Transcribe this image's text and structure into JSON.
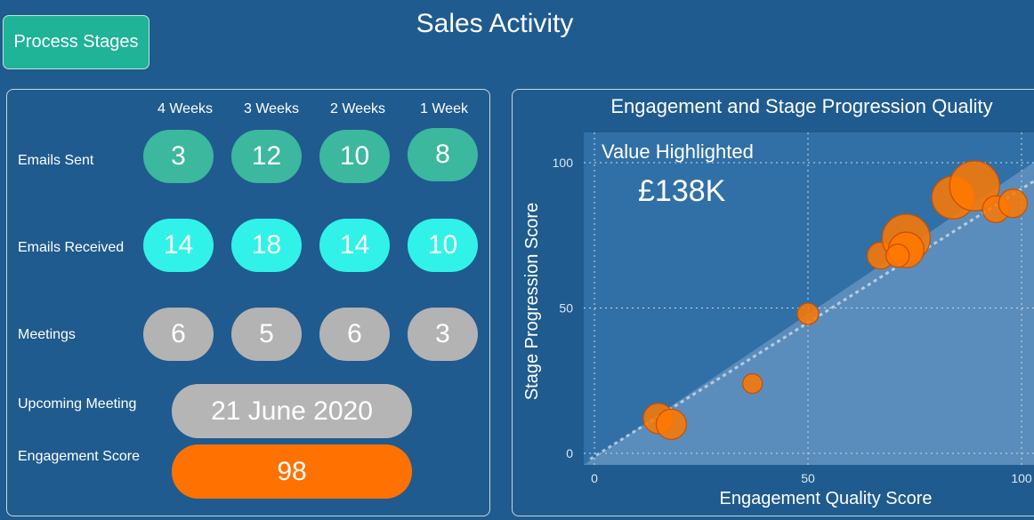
{
  "header": {
    "process_button": "Process Stages",
    "title": "Sales Activity"
  },
  "activity": {
    "columns": [
      "4 Weeks",
      "3 Weeks",
      "2 Weeks",
      "1 Week"
    ],
    "rows": [
      {
        "label": "Emails Sent",
        "values": [
          "3",
          "12",
          "10",
          "8"
        ],
        "color": "#3bb89e"
      },
      {
        "label": "Emails Received",
        "values": [
          "14",
          "18",
          "14",
          "10"
        ],
        "color": "#31f2e8"
      },
      {
        "label": "Meetings",
        "values": [
          "6",
          "5",
          "6",
          "3"
        ],
        "color": "#b3b3b3"
      }
    ],
    "upcoming_label": "Upcoming Meeting",
    "upcoming_value": "21 June 2020",
    "engagement_label": "Engagement Score",
    "engagement_value": "98",
    "engagement_color": "#ff7100"
  },
  "chart_data": {
    "type": "scatter",
    "title": "Engagement and Stage Progression Quality",
    "xlabel": "Engagement Quality Score",
    "ylabel": "Stage Progression Score",
    "xlim": [
      -1,
      101
    ],
    "ylim": [
      -4,
      110
    ],
    "xticks": [
      "0",
      "50",
      "100"
    ],
    "yticks": [
      "0",
      "50",
      "100"
    ],
    "grid": true,
    "highlight_label": "Value Highlighted",
    "highlight_value": "£138K",
    "marker_color": "#ff7800",
    "points": [
      {
        "x": 15,
        "y": 12,
        "size": 17
      },
      {
        "x": 18,
        "y": 10,
        "size": 17
      },
      {
        "x": 37,
        "y": 24,
        "size": 11
      },
      {
        "x": 50,
        "y": 48,
        "size": 12
      },
      {
        "x": 67,
        "y": 68,
        "size": 15
      },
      {
        "x": 73,
        "y": 74,
        "size": 27
      },
      {
        "x": 73,
        "y": 70,
        "size": 20
      },
      {
        "x": 71,
        "y": 68,
        "size": 13
      },
      {
        "x": 84,
        "y": 88,
        "size": 24
      },
      {
        "x": 89,
        "y": 92,
        "size": 28
      },
      {
        "x": 94,
        "y": 84,
        "size": 15
      },
      {
        "x": 98,
        "y": 86,
        "size": 16
      }
    ]
  }
}
